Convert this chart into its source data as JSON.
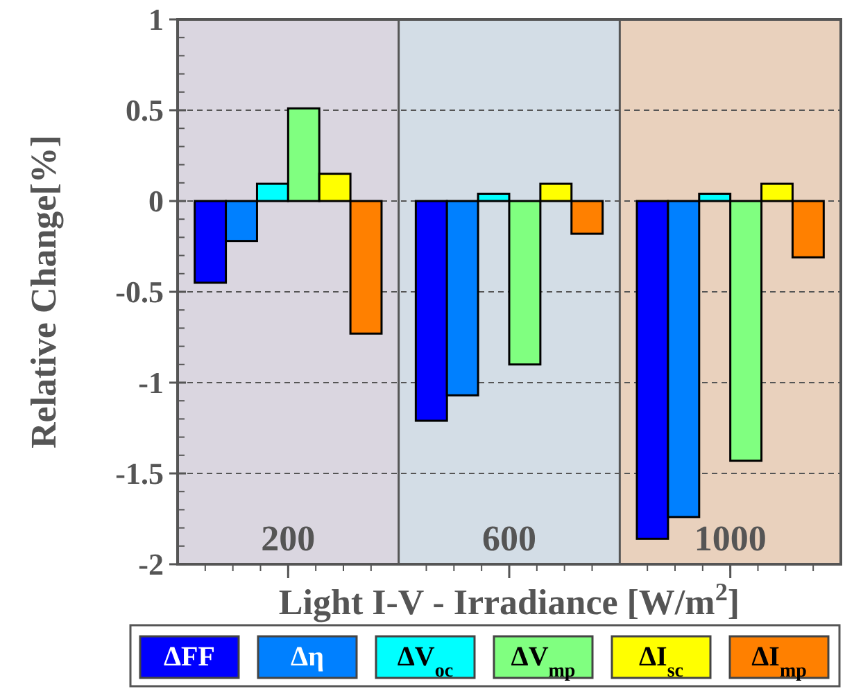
{
  "chart_data": {
    "type": "bar",
    "xlabel": "Light I-V - Irradiance [W/m$^{2}$]",
    "ylabel": "Relative Change[%]",
    "categories": [
      "200",
      "600",
      "1000"
    ],
    "series": [
      {
        "name": "ΔFF",
        "color": "#0000ff",
        "values": [
          -0.45,
          -1.21,
          -1.86
        ]
      },
      {
        "name": "Δη",
        "color": "#0080ff",
        "values": [
          -0.22,
          -1.07,
          -1.74
        ]
      },
      {
        "name": "ΔV$_{oc}$",
        "color": "#00ffff",
        "values": [
          0.095,
          0.04,
          0.04
        ]
      },
      {
        "name": "ΔV$_{mp}$",
        "color": "#80ff80",
        "values": [
          0.51,
          -0.9,
          -1.43
        ]
      },
      {
        "name": "ΔI$_{sc}$",
        "color": "#ffff00",
        "values": [
          0.15,
          0.095,
          0.095
        ]
      },
      {
        "name": "ΔI$_{mp}$",
        "color": "#ff8000",
        "values": [
          -0.73,
          -0.18,
          -0.31
        ]
      }
    ],
    "ylim": [
      -2,
      1
    ],
    "yticks": [
      -2,
      -1.5,
      -1,
      -0.5,
      0,
      0.5,
      1
    ],
    "grid": "y",
    "legend": "bottom",
    "bands": [
      {
        "axis": "x",
        "from": "200",
        "to": "200",
        "color": "#dad6e0"
      },
      {
        "axis": "x",
        "from": "600",
        "to": "600",
        "color": "#d3dde6"
      },
      {
        "axis": "x",
        "from": "1000",
        "to": "1000",
        "color": "#e9d1bd"
      }
    ]
  }
}
